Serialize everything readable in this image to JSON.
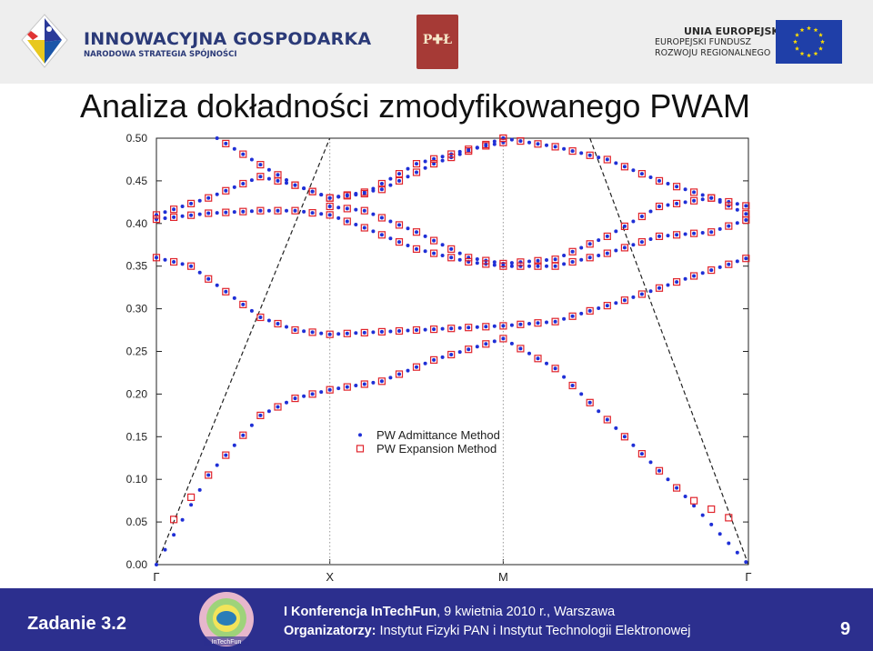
{
  "header": {
    "logo_title": "INNOWACYJNA GOSPODARKA",
    "logo_subtitle": "NARODOWA STRATEGIA SPÓJNOŚCI",
    "center_logo": "P✚Ł",
    "eu_line1": "UNIA EUROPEJSKA",
    "eu_line2": "EUROPEJSKI FUNDUSZ",
    "eu_line3": "ROZWOJU REGIONALNEGO"
  },
  "title": "Analiza dokładności zmodyfikowanego PWAM",
  "colors": {
    "footer_bg": "#2c2f8e",
    "dots": "#1f2fd6",
    "squares": "#e0242c",
    "eu_blue": "#1f3fa8",
    "eu_star": "#ffdd00"
  },
  "chart_data": {
    "type": "scatter",
    "title": "",
    "xlabel": "",
    "ylabel": "",
    "ylim": [
      0.0,
      0.5
    ],
    "y_ticks": [
      "0.00",
      "0.05",
      "0.10",
      "0.15",
      "0.20",
      "0.25",
      "0.30",
      "0.35",
      "0.40",
      "0.45",
      "0.50"
    ],
    "x_ticks": [
      "Γ",
      "X",
      "M",
      "Γ"
    ],
    "x_tick_positions": [
      0,
      1,
      2,
      3.414
    ],
    "xlim": [
      0,
      3.414
    ],
    "grid": "vertical dotted lines at X and M",
    "legend": {
      "position": "center-right",
      "entries": [
        "PW Admittance Method",
        "PW Expansion Method"
      ]
    },
    "light_lines": [
      {
        "style": "dashed",
        "points": [
          [
            0,
            0
          ],
          [
            1,
            0.5
          ]
        ]
      },
      {
        "style": "dashed",
        "points": [
          [
            2.5,
            0.5
          ],
          [
            3.414,
            0
          ]
        ]
      }
    ],
    "series": [
      {
        "name": "PW Admittance Method",
        "marker": "dot",
        "color": "#1f2fd6",
        "step": 0.05,
        "bands": [
          [
            [
              0,
              0
            ],
            [
              0.3,
              0.105
            ],
            [
              0.6,
              0.175
            ],
            [
              0.8,
              0.195
            ],
            [
              1,
              0.205
            ],
            [
              1.3,
              0.215
            ],
            [
              1.6,
              0.24
            ],
            [
              2,
              0.265
            ],
            [
              2.3,
              0.23
            ],
            [
              2.7,
              0.15
            ],
            [
              3.05,
              0.08
            ],
            [
              3.414,
              0
            ]
          ],
          [
            [
              0,
              0.36
            ],
            [
              0.2,
              0.35
            ],
            [
              0.4,
              0.32
            ],
            [
              0.6,
              0.29
            ],
            [
              0.8,
              0.275
            ],
            [
              1,
              0.27
            ],
            [
              1.5,
              0.275
            ],
            [
              2,
              0.28
            ],
            [
              2.3,
              0.285
            ],
            [
              2.7,
              0.31
            ],
            [
              3.05,
              0.335
            ],
            [
              3.414,
              0.36
            ]
          ],
          [
            [
              0,
              0.405
            ],
            [
              0.3,
              0.412
            ],
            [
              0.6,
              0.415
            ],
            [
              0.8,
              0.415
            ],
            [
              1,
              0.41
            ],
            [
              1.2,
              0.395
            ],
            [
              1.5,
              0.37
            ],
            [
              1.8,
              0.355
            ],
            [
              2,
              0.35
            ],
            [
              2.3,
              0.35
            ],
            [
              2.6,
              0.365
            ],
            [
              2.9,
              0.385
            ],
            [
              3.2,
              0.39
            ],
            [
              3.414,
              0.405
            ]
          ],
          [
            [
              0,
              0.41
            ],
            [
              0.3,
              0.43
            ],
            [
              0.6,
              0.455
            ],
            [
              0.8,
              0.445
            ],
            [
              1,
              0.43
            ],
            [
              1.2,
              0.435
            ],
            [
              1.5,
              0.47
            ],
            [
              1.8,
              0.487
            ],
            [
              2,
              0.495
            ]
          ],
          [
            [
              1,
              0.42
            ],
            [
              1.2,
              0.415
            ],
            [
              1.5,
              0.39
            ],
            [
              1.8,
              0.36
            ],
            [
              2,
              0.353
            ],
            [
              2.3,
              0.358
            ],
            [
              2.6,
              0.385
            ],
            [
              2.9,
              0.42
            ],
            [
              3.2,
              0.43
            ],
            [
              3.414,
              0.42
            ]
          ],
          [
            [
              0.35,
              0.5
            ],
            [
              0.55,
              0.475
            ],
            [
              0.8,
              0.445
            ],
            [
              1,
              0.43
            ],
            [
              1.3,
              0.44
            ],
            [
              1.6,
              0.47
            ],
            [
              2,
              0.5
            ]
          ],
          [
            [
              2,
              0.5
            ],
            [
              2.3,
              0.49
            ],
            [
              2.6,
              0.475
            ],
            [
              2.9,
              0.45
            ],
            [
              3.2,
              0.43
            ],
            [
              3.414,
              0.41
            ]
          ]
        ]
      },
      {
        "name": "PW Expansion Method",
        "marker": "square",
        "color": "#e0242c",
        "step": 0.1,
        "bands": [
          [
            [
              0.05,
              0.04
            ],
            [
              0.3,
              0.105
            ],
            [
              0.6,
              0.175
            ],
            [
              0.8,
              0.195
            ],
            [
              1,
              0.205
            ],
            [
              1.3,
              0.215
            ],
            [
              1.6,
              0.24
            ],
            [
              2,
              0.265
            ],
            [
              2.3,
              0.23
            ],
            [
              2.7,
              0.15
            ],
            [
              3.05,
              0.08
            ],
            [
              3.35,
              0.05
            ]
          ],
          [
            [
              0,
              0.36
            ],
            [
              0.2,
              0.35
            ],
            [
              0.4,
              0.32
            ],
            [
              0.6,
              0.29
            ],
            [
              0.8,
              0.275
            ],
            [
              1,
              0.27
            ],
            [
              1.5,
              0.275
            ],
            [
              2,
              0.28
            ],
            [
              2.3,
              0.285
            ],
            [
              2.7,
              0.31
            ],
            [
              3.05,
              0.335
            ],
            [
              3.414,
              0.36
            ]
          ],
          [
            [
              0,
              0.405
            ],
            [
              0.3,
              0.412
            ],
            [
              0.6,
              0.415
            ],
            [
              0.8,
              0.415
            ],
            [
              1,
              0.41
            ],
            [
              1.2,
              0.395
            ],
            [
              1.5,
              0.37
            ],
            [
              1.8,
              0.355
            ],
            [
              2,
              0.35
            ],
            [
              2.3,
              0.35
            ],
            [
              2.6,
              0.365
            ],
            [
              2.9,
              0.385
            ],
            [
              3.2,
              0.39
            ],
            [
              3.414,
              0.405
            ]
          ],
          [
            [
              0,
              0.41
            ],
            [
              0.3,
              0.43
            ],
            [
              0.6,
              0.455
            ],
            [
              0.8,
              0.445
            ],
            [
              1,
              0.43
            ],
            [
              1.2,
              0.435
            ],
            [
              1.5,
              0.47
            ],
            [
              1.8,
              0.487
            ],
            [
              2,
              0.495
            ]
          ],
          [
            [
              1,
              0.42
            ],
            [
              1.2,
              0.415
            ],
            [
              1.5,
              0.39
            ],
            [
              1.8,
              0.36
            ],
            [
              2,
              0.353
            ],
            [
              2.3,
              0.358
            ],
            [
              2.6,
              0.385
            ],
            [
              2.9,
              0.42
            ],
            [
              3.2,
              0.43
            ],
            [
              3.414,
              0.42
            ]
          ],
          [
            [
              0.35,
              0.5
            ],
            [
              0.55,
              0.475
            ],
            [
              0.8,
              0.445
            ],
            [
              1,
              0.43
            ],
            [
              1.3,
              0.44
            ],
            [
              1.6,
              0.47
            ],
            [
              2,
              0.5
            ]
          ],
          [
            [
              2,
              0.5
            ],
            [
              2.3,
              0.49
            ],
            [
              2.6,
              0.475
            ],
            [
              2.9,
              0.45
            ],
            [
              3.2,
              0.43
            ],
            [
              3.414,
              0.41
            ]
          ]
        ]
      }
    ]
  },
  "footer": {
    "task": "Zadanie 3.2",
    "conf_name": "I Konferencja InTechFun",
    "conf_rest": ", 9 kwietnia 2010 r.,  Warszawa",
    "org_label": "Organizatorzy:",
    "org_rest": " Instytut Fizyki PAN i Instytut Technologii Elektronowej",
    "logo_label": "InTechFun",
    "page": "9"
  }
}
